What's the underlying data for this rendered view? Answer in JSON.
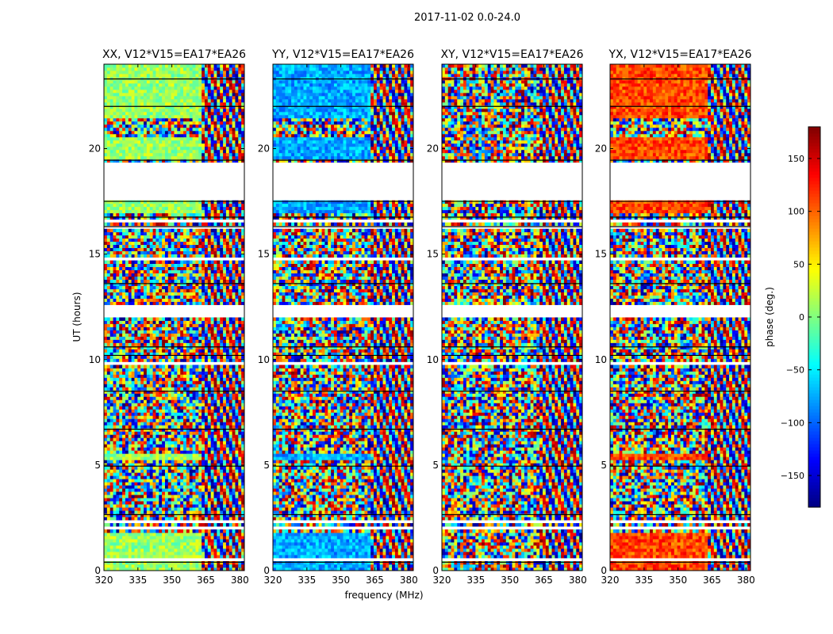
{
  "chart_data": {
    "type": "heatmap",
    "title": "2017-11-02 0.0-24.0",
    "xlabel": "frequency (MHz)",
    "ylabel": "UT (hours)",
    "xlim": [
      320,
      382
    ],
    "ylim": [
      0,
      24
    ],
    "x_ticks": [
      320,
      335,
      350,
      365,
      380
    ],
    "y_ticks": [
      0,
      5,
      10,
      15,
      20
    ],
    "colorbar": {
      "label": "phase (deg.)",
      "range": [
        -180,
        180
      ],
      "ticks": [
        -150,
        -100,
        -50,
        0,
        50,
        100,
        150
      ],
      "colormap": "jet"
    },
    "flagged_hours": [
      [
        17.6,
        19.4
      ],
      [
        16.5,
        16.7
      ],
      [
        16.15,
        16.3
      ],
      [
        14.7,
        14.85
      ],
      [
        12.0,
        12.6
      ],
      [
        9.8,
        9.95
      ],
      [
        6.4,
        6.5
      ],
      [
        5.05,
        5.15
      ],
      [
        2.2,
        2.35
      ],
      [
        2.0,
        2.05
      ],
      [
        0.5,
        0.6
      ]
    ],
    "panels": [
      {
        "title": "XX, V12*V15=EA17*EA26",
        "base_phase": 10
      },
      {
        "title": "YY, V12*V15=EA17*EA26",
        "base_phase": -75
      },
      {
        "title": "XY, V12*V15=EA17*EA26",
        "base_phase": 5
      },
      {
        "title": "YX, V12*V15=EA17*EA26",
        "base_phase": 110
      }
    ]
  },
  "colors": {
    "background": "#ffffff",
    "axis": "#000000",
    "flag": "#ffffff"
  }
}
